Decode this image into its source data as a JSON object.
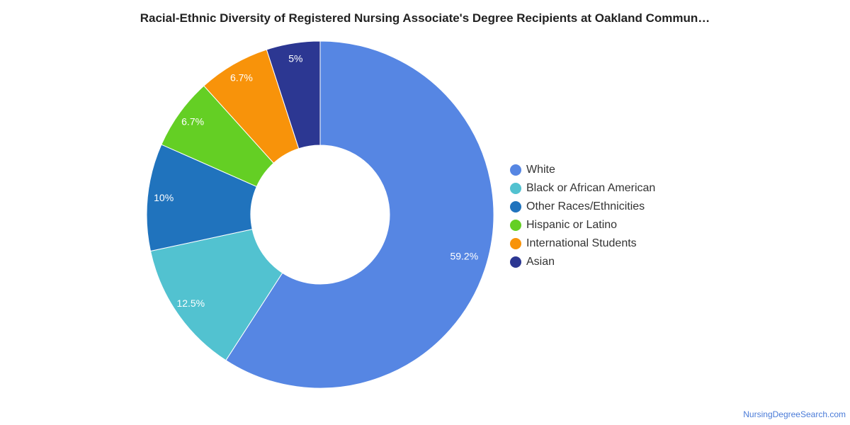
{
  "title": "Racial-Ethnic Diversity of Registered Nursing Associate's Degree Recipients at Oakland Commun…",
  "footer": "NursingDegreeSearch.com",
  "chart_data": {
    "type": "pie",
    "donut": true,
    "legend_position": "right",
    "title": "Racial-Ethnic Diversity of Registered Nursing Associate's Degree Recipients at Oakland Commun…",
    "slices": [
      {
        "label": "White",
        "value": 59.2,
        "display": "59.2%",
        "color": "#5686e3"
      },
      {
        "label": "Black or African American",
        "value": 12.5,
        "display": "12.5%",
        "color": "#52c2d0"
      },
      {
        "label": "Other Races/Ethnicities",
        "value": 10,
        "display": "10%",
        "color": "#2073bd"
      },
      {
        "label": "Hispanic or Latino",
        "value": 6.7,
        "display": "6.7%",
        "color": "#64cf24"
      },
      {
        "label": "International Students",
        "value": 6.7,
        "display": "6.7%",
        "color": "#f8930a"
      },
      {
        "label": "Asian",
        "value": 5,
        "display": "5%",
        "color": "#2c3792"
      }
    ]
  }
}
